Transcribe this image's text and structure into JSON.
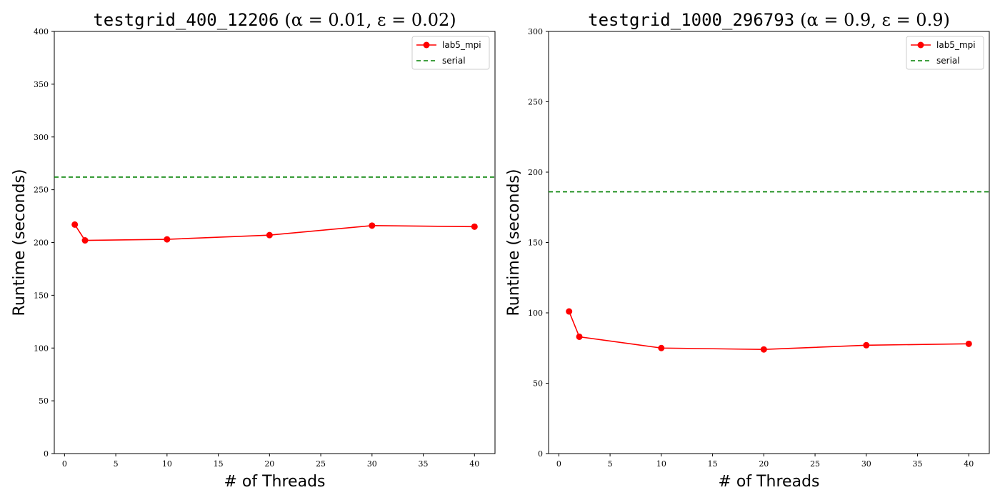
{
  "chart_data": [
    {
      "type": "line",
      "title_code": "testgrid_400_12206",
      "title_params": "(α = 0.01, ε = 0.02)",
      "xlabel": "# of Threads",
      "ylabel": "Runtime (seconds)",
      "xlim": [
        -1,
        42
      ],
      "ylim": [
        0,
        400
      ],
      "xticks": [
        0,
        5,
        10,
        15,
        20,
        25,
        30,
        35,
        40
      ],
      "yticks": [
        0,
        50,
        100,
        150,
        200,
        250,
        300,
        350,
        400
      ],
      "grid": false,
      "legend_position": "top-right",
      "series": [
        {
          "name": "lab5_mpi",
          "style": "solid-marker",
          "color": "#ff0000",
          "x": [
            1,
            2,
            10,
            20,
            30,
            40
          ],
          "values": [
            217,
            202,
            203,
            207,
            216,
            215
          ]
        }
      ],
      "reference_lines": [
        {
          "name": "serial",
          "style": "dashed",
          "color": "#008000",
          "y": 262
        }
      ]
    },
    {
      "type": "line",
      "title_code": "testgrid_1000_296793",
      "title_params": "(α = 0.9, ε = 0.9)",
      "xlabel": "# of Threads",
      "ylabel": "Runtime (seconds)",
      "xlim": [
        -1,
        42
      ],
      "ylim": [
        0,
        300
      ],
      "xticks": [
        0,
        5,
        10,
        15,
        20,
        25,
        30,
        35,
        40
      ],
      "yticks": [
        0,
        50,
        100,
        150,
        200,
        250,
        300
      ],
      "grid": false,
      "legend_position": "top-right",
      "series": [
        {
          "name": "lab5_mpi",
          "style": "solid-marker",
          "color": "#ff0000",
          "x": [
            1,
            2,
            10,
            20,
            30,
            40
          ],
          "values": [
            101,
            83,
            75,
            74,
            77,
            78
          ]
        }
      ],
      "reference_lines": [
        {
          "name": "serial",
          "style": "dashed",
          "color": "#008000",
          "y": 186
        }
      ]
    }
  ]
}
